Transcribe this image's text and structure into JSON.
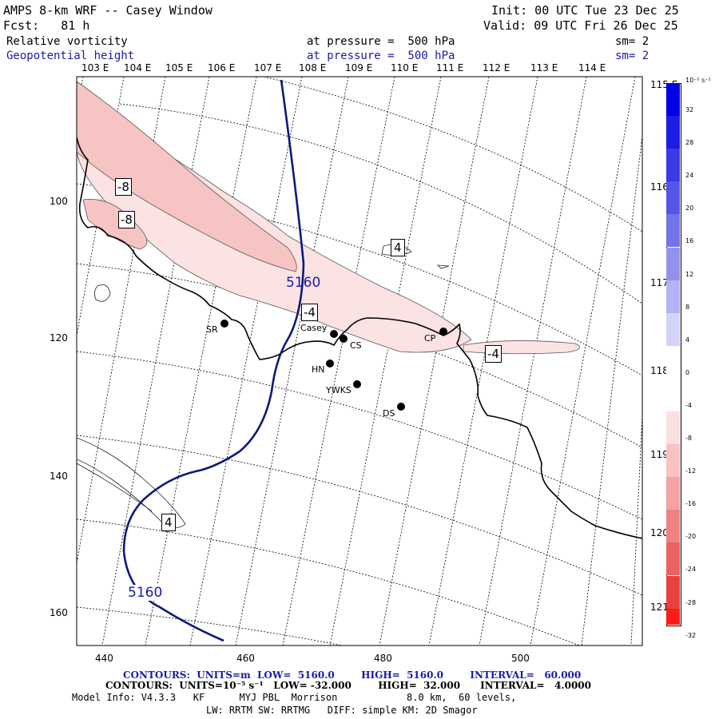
{
  "header": {
    "title": "AMPS 8-km WRF -- Casey Window",
    "init": "Init: 00 UTC Tue 23 Dec 25",
    "fcst": "Fcst:   81 h",
    "valid": "Valid: 09 UTC Fri 26 Dec 25",
    "field1": {
      "name": "Relative vorticity",
      "level": "at pressure =  500 hPa",
      "sm": "sm= 2"
    },
    "field2": {
      "name": "Geopotential height",
      "level": "at pressure =  500 hPa",
      "sm": "sm= 2"
    }
  },
  "map": {
    "lon_labels": [
      "103 E",
      "104 E",
      "105 E",
      "106 E",
      "107 E",
      "108 E",
      "109 E",
      "110 E",
      "111 E",
      "112 E",
      "113 E",
      "114 E"
    ],
    "lat_labels_right": [
      "115 E",
      "116 E",
      "117 E",
      "118 E",
      "119 E",
      "120 E",
      "121 E"
    ],
    "y_ticks": [
      "100",
      "120",
      "140",
      "160"
    ],
    "x_ticks": [
      "440",
      "460",
      "480",
      "500"
    ],
    "stations": [
      {
        "id": "SR",
        "label": "SR"
      },
      {
        "id": "Casey",
        "label": "Casey"
      },
      {
        "id": "CS",
        "label": "CS"
      },
      {
        "id": "HN",
        "label": "HN"
      },
      {
        "id": "YWKS",
        "label": "YWKS"
      },
      {
        "id": "DS",
        "label": "DS"
      },
      {
        "id": "CP",
        "label": "CP"
      }
    ],
    "contour_labels": {
      "vort_a": "-8",
      "vort_b": "-8",
      "vort_c": "4",
      "vort_d": "-4",
      "vort_e": "-4",
      "vort_f": "4",
      "height_a": "5160",
      "height_b": "5160"
    }
  },
  "colorbar": {
    "unit": "10⁻⁵ s⁻¹",
    "labels": [
      "32",
      "28",
      "24",
      "20",
      "16",
      "12",
      "8",
      "4",
      "0",
      "-4",
      "-8",
      "-12",
      "-16",
      "-20",
      "-24",
      "-28",
      "-32"
    ],
    "colors": [
      "#0000e6",
      "#1c1ce6",
      "#3a3ae6",
      "#5656e6",
      "#7474ea",
      "#9292ee",
      "#b2b2f4",
      "#d4d4fa",
      "#ffffff",
      "#ffffff",
      "#fbe0e0",
      "#f8c2c2",
      "#f4a2a2",
      "#f08282",
      "#ec6262",
      "#e84040",
      "#ff1a1a"
    ]
  },
  "footer": {
    "line1": "CONTOURS:  UNITS=m  LOW=  5160.0        HIGH=  5160.0        INTERVAL=   60.000",
    "line2": "CONTOURS:  UNITS=10⁻⁵ s⁻¹   LOW= -32.000        HIGH=  32.000      INTERVAL=   4.0000",
    "line3": "Model Info: V4.3.3   KF      MYJ PBL  Morrison            8.0 km,  60 levels,",
    "line4": "LW: RRTM SW: RRTMG   DIFF: simple KM: 2D Smagor"
  },
  "colors": {
    "height": "#0a1a7a",
    "text_blue": "#1a1aa8",
    "coast": "#000000"
  }
}
